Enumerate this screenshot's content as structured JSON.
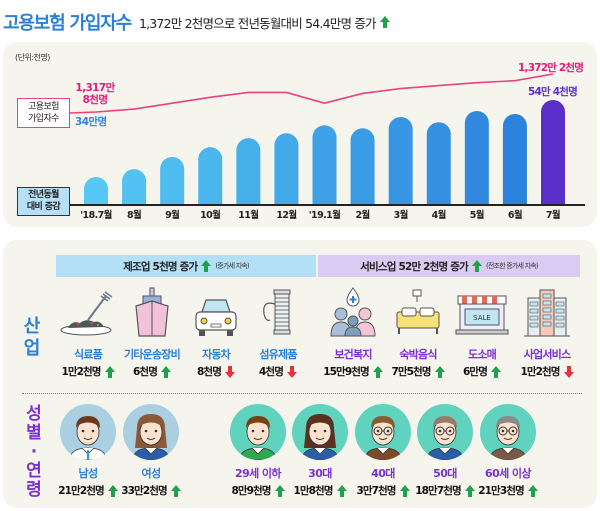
{
  "header": {
    "title": "고용보험 가입자수",
    "subtitle": "1,372만 2천명으로 전년동월대비 54.4만명 증가",
    "trend": "up"
  },
  "chart_data": {
    "type": "bar",
    "title": "고용보험 가입자수",
    "unit_label": "(단위:천명)",
    "categories": [
      "'18.7월",
      "8월",
      "9월",
      "10월",
      "11월",
      "12월",
      "'19.1월",
      "2월",
      "3월",
      "4월",
      "5월",
      "6월",
      "7월"
    ],
    "series": [
      {
        "name": "전년동월 대비 증감",
        "type": "bar",
        "unit": "만명",
        "values": [
          34.0,
          36.1,
          39.3,
          41.9,
          44.3,
          45.6,
          47.7,
          46.9,
          49.9,
          48.5,
          51.5,
          50.7,
          54.4
        ],
        "labeled": {
          "first": "34만명",
          "last": "54만 4천명"
        }
      },
      {
        "name": "고용보험 가입자수",
        "type": "line",
        "unit": "만명",
        "values": [
          1317.8,
          1322.0,
          1330.4,
          1338.8,
          1345.8,
          1345.8,
          1330.4,
          1344.4,
          1351.4,
          1355.6,
          1359.8,
          1362.6,
          1372.2
        ],
        "labeled": {
          "first": "1,317만 8천명",
          "last": "1,372만 2천명"
        }
      }
    ],
    "legend": {
      "line_label": "고용보험 가입자수",
      "bar_label": "전년동월 대비 증감"
    },
    "colors": {
      "line": "#e8437f",
      "bar_start": "#56c8f5",
      "bar_end": "#2c83dd",
      "bar_highlight": "#5a2fc9",
      "axis": "#222222"
    },
    "grid": false
  },
  "chart_labels": {
    "unit": "(단위:천명)",
    "legend_line_1": "고용보험",
    "legend_line_2": "가입자수",
    "axis_box_1": "전년동월",
    "axis_box_2": "대비 증감",
    "start_line_1": "1,317만",
    "start_line_2": "8천명",
    "start_bar": "34만명",
    "end_line": "1,372만 2천명",
    "end_bar": "54만 4천명"
  },
  "industry": {
    "label": "산업",
    "manufacturing": {
      "title": "제조업 5천명 증가",
      "trend": "up",
      "note": "(증가세 지속)"
    },
    "services": {
      "title": "서비스업 52만 2천명 증가",
      "trend": "up",
      "note": "(전조한 증가세 지속)"
    },
    "items": [
      {
        "icon": "food-icon",
        "name": "식료품",
        "value": "1만2천명",
        "trend": "up"
      },
      {
        "icon": "ship-icon",
        "name": "기타운송장비",
        "value": "6천명",
        "trend": "up"
      },
      {
        "icon": "car-icon",
        "name": "자동차",
        "value": "8천명",
        "trend": "down"
      },
      {
        "icon": "thread-spool-icon",
        "name": "섬유제품",
        "value": "4천명",
        "trend": "down"
      },
      {
        "icon": "healthcare-people-icon",
        "name": "보건복지",
        "value": "15만9천명",
        "trend": "up"
      },
      {
        "icon": "bed-icon",
        "name": "숙박음식",
        "value": "7만5천명",
        "trend": "up"
      },
      {
        "icon": "store-sale-icon",
        "name": "도소매",
        "value": "6만명",
        "trend": "up",
        "sign_text": "SALE"
      },
      {
        "icon": "office-building-icon",
        "name": "사업서비스",
        "value": "1만2천명",
        "trend": "down"
      }
    ]
  },
  "demographics": {
    "label_1": "성별",
    "label_sep": "·",
    "label_2": "연령",
    "items": [
      {
        "icon": "male-avatar-icon",
        "name": "남성",
        "value": "21만2천명",
        "trend": "up"
      },
      {
        "icon": "female-avatar-icon",
        "name": "여성",
        "value": "33만2천명",
        "trend": "up"
      },
      {
        "icon": "age-under-29-avatar-icon",
        "name": "29세 이하",
        "value": "8만9천명",
        "trend": "up"
      },
      {
        "icon": "age-30s-avatar-icon",
        "name": "30대",
        "value": "1만8천명",
        "trend": "up"
      },
      {
        "icon": "age-40s-avatar-icon",
        "name": "40대",
        "value": "3만7천명",
        "trend": "up"
      },
      {
        "icon": "age-50s-avatar-icon",
        "name": "50대",
        "value": "18만7천명",
        "trend": "up"
      },
      {
        "icon": "age-60-plus-avatar-icon",
        "name": "60세 이상",
        "value": "21만3천명",
        "trend": "up"
      }
    ]
  }
}
